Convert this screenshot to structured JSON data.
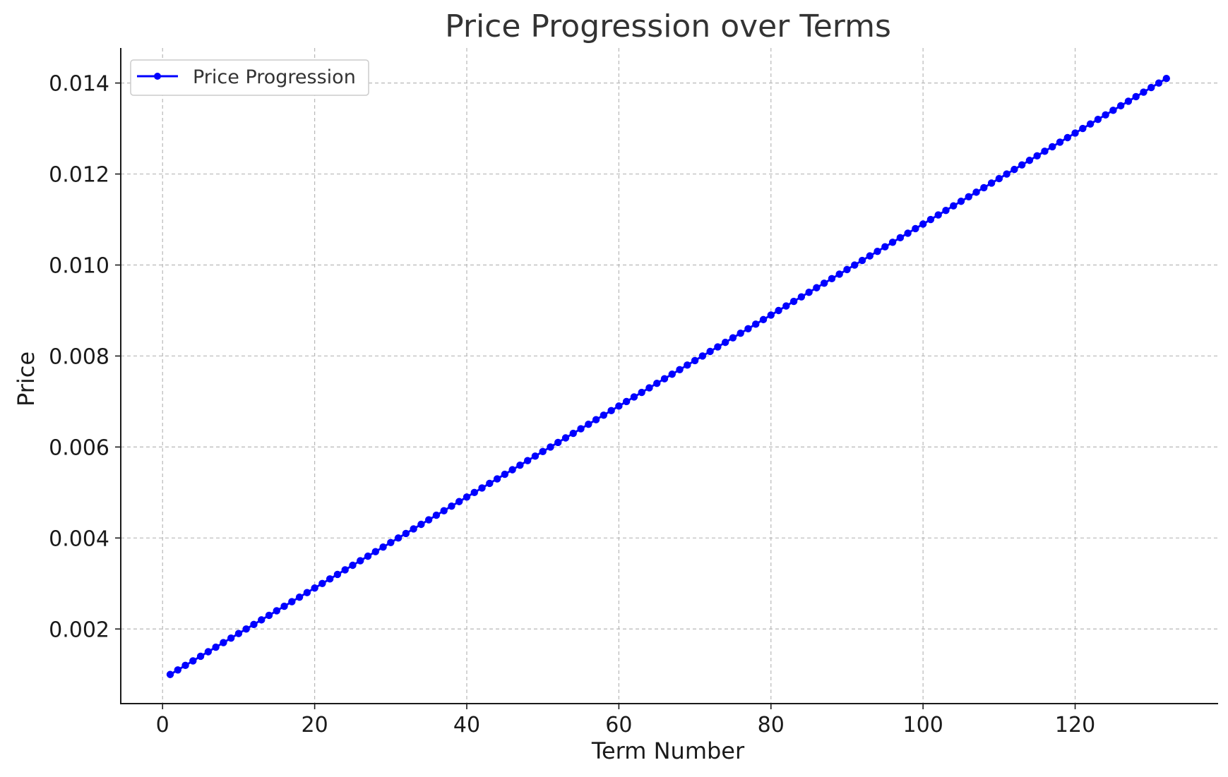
{
  "chart_data": {
    "type": "line",
    "title": "Price Progression over Terms",
    "xlabel": "Term Number",
    "ylabel": "Price",
    "xlim": [
      -5.5,
      138.8
    ],
    "ylim": [
      0.00036,
      0.01477
    ],
    "x_ticks": [
      0,
      20,
      40,
      60,
      80,
      100,
      120
    ],
    "x_tick_labels": [
      "0",
      "20",
      "40",
      "60",
      "80",
      "100",
      "120"
    ],
    "y_ticks": [
      0.002,
      0.004,
      0.006,
      0.008,
      0.01,
      0.012,
      0.014
    ],
    "y_tick_labels": [
      "0.002",
      "0.004",
      "0.006",
      "0.008",
      "0.010",
      "0.012",
      "0.014"
    ],
    "grid": true,
    "legend_position": "top-left",
    "series": [
      {
        "name": "Price Progression",
        "color": "#0000ff",
        "marker": "circle",
        "x_start": 1,
        "x_end": 132,
        "x_step": 1,
        "y_start": 0.001,
        "y_step": 0.0001
      }
    ]
  }
}
